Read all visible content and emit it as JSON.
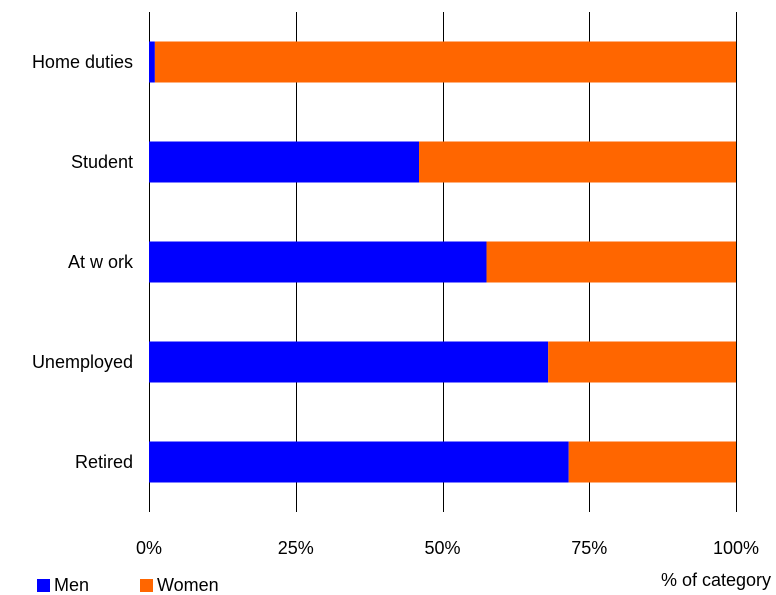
{
  "chart_data": {
    "type": "bar",
    "orientation": "horizontal",
    "stacked": true,
    "normalized": true,
    "categories": [
      "Home duties",
      "Student",
      "At w ork",
      "Unemployed",
      "Retired"
    ],
    "series": [
      {
        "name": "Men",
        "color": "#0000ff",
        "values": [
          1,
          46,
          57.5,
          68,
          71.5
        ]
      },
      {
        "name": "Women",
        "color": "#ff6600",
        "values": [
          99,
          54,
          42.5,
          32,
          28.5
        ]
      }
    ],
    "xticks": [
      "0%",
      "25%",
      "50%",
      "75%",
      "100%"
    ],
    "xlim": [
      0,
      100
    ],
    "xlabel": "% of category",
    "ylabel": "",
    "grid": true,
    "legend_position": "bottom-left"
  }
}
